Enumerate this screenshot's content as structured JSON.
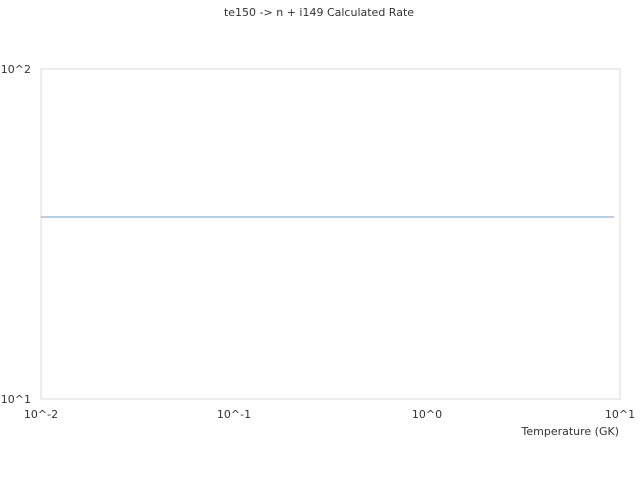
{
  "chart_data": {
    "type": "line",
    "title": "te150 -> n + i149 Calculated Rate",
    "xlabel": "Temperature (GK)",
    "ylabel": "",
    "xscale": "log",
    "yscale": "log",
    "xlim": [
      0.01,
      10
    ],
    "ylim": [
      10,
      100
    ],
    "x_ticks": [
      {
        "value": 0.01,
        "label": "10^-2"
      },
      {
        "value": 0.1,
        "label": "10^-1"
      },
      {
        "value": 1,
        "label": "10^0"
      },
      {
        "value": 10,
        "label": "10^1"
      }
    ],
    "y_ticks": [
      {
        "value": 10,
        "label": "10^1"
      },
      {
        "value": 100,
        "label": "10^2"
      }
    ],
    "grid": false,
    "series": [
      {
        "color": "#6b9ed6",
        "x": [
          0.01,
          0.1,
          1,
          9.3
        ],
        "y": [
          35.6,
          35.6,
          35.6,
          35.6
        ]
      }
    ]
  }
}
